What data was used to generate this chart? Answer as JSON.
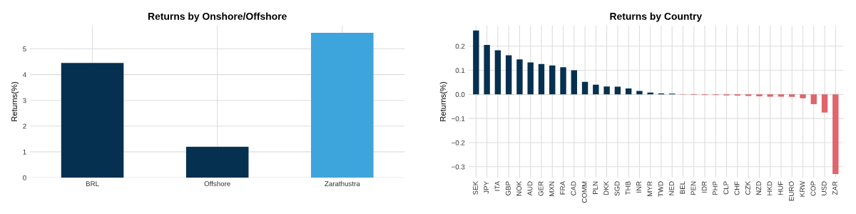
{
  "chart_data": [
    {
      "type": "bar",
      "title": "Returns by Onshore/Offshore",
      "ylabel": "Returns(%)",
      "categories": [
        "BRL",
        "Offshore",
        "Zarathustra"
      ],
      "values": [
        4.45,
        1.2,
        5.62
      ],
      "colors": [
        "#06304f",
        "#06304f",
        "#3ea4dc"
      ],
      "ylim": [
        0,
        5.9
      ],
      "yticks": [
        0,
        1,
        2,
        3,
        4,
        5
      ],
      "grid": true
    },
    {
      "type": "bar",
      "title": "Returns by Country",
      "ylabel": "Returns(%)",
      "categories": [
        "SEK",
        "JPY",
        "ITA",
        "GBP",
        "NOK",
        "AUD",
        "GER",
        "MXN",
        "FRA",
        "CAD",
        "COMM",
        "PLN",
        "DKK",
        "SGD",
        "THB",
        "INR",
        "MYR",
        "TWD",
        "NED",
        "BEL",
        "PEN",
        "IDR",
        "PHP",
        "CLP",
        "CHF",
        "CZK",
        "NZD",
        "HKD",
        "HUF",
        "EURO",
        "KRW",
        "COP",
        "USD",
        "ZAR"
      ],
      "values": [
        0.265,
        0.205,
        0.183,
        0.162,
        0.145,
        0.133,
        0.126,
        0.12,
        0.113,
        0.1,
        0.052,
        0.04,
        0.033,
        0.032,
        0.025,
        0.014,
        0.008,
        0.004,
        0.003,
        -0.001,
        -0.002,
        -0.003,
        -0.003,
        -0.004,
        -0.005,
        -0.006,
        -0.008,
        -0.009,
        -0.009,
        -0.01,
        -0.016,
        -0.04,
        -0.075,
        -0.33
      ],
      "colors": [
        "#06304f",
        "#06304f",
        "#06304f",
        "#06304f",
        "#06304f",
        "#06304f",
        "#06304f",
        "#06304f",
        "#06304f",
        "#06304f",
        "#06304f",
        "#06304f",
        "#06304f",
        "#06304f",
        "#06304f",
        "#06304f",
        "#06304f",
        "#06304f",
        "#06304f",
        "#e0646c",
        "#e0646c",
        "#e0646c",
        "#e0646c",
        "#e0646c",
        "#e0646c",
        "#e0646c",
        "#e0646c",
        "#e0646c",
        "#e0646c",
        "#e0646c",
        "#e0646c",
        "#e0646c",
        "#e0646c",
        "#e0646c"
      ],
      "ylim": [
        -0.345,
        0.285
      ],
      "yticks": [
        {
          "value": -0.3,
          "label": "−0.3"
        },
        {
          "value": -0.2,
          "label": "−0.2"
        },
        {
          "value": -0.1,
          "label": "−0.1"
        },
        {
          "value": 0,
          "label": "0.0"
        },
        0.1,
        0.2
      ],
      "grid": true
    }
  ]
}
